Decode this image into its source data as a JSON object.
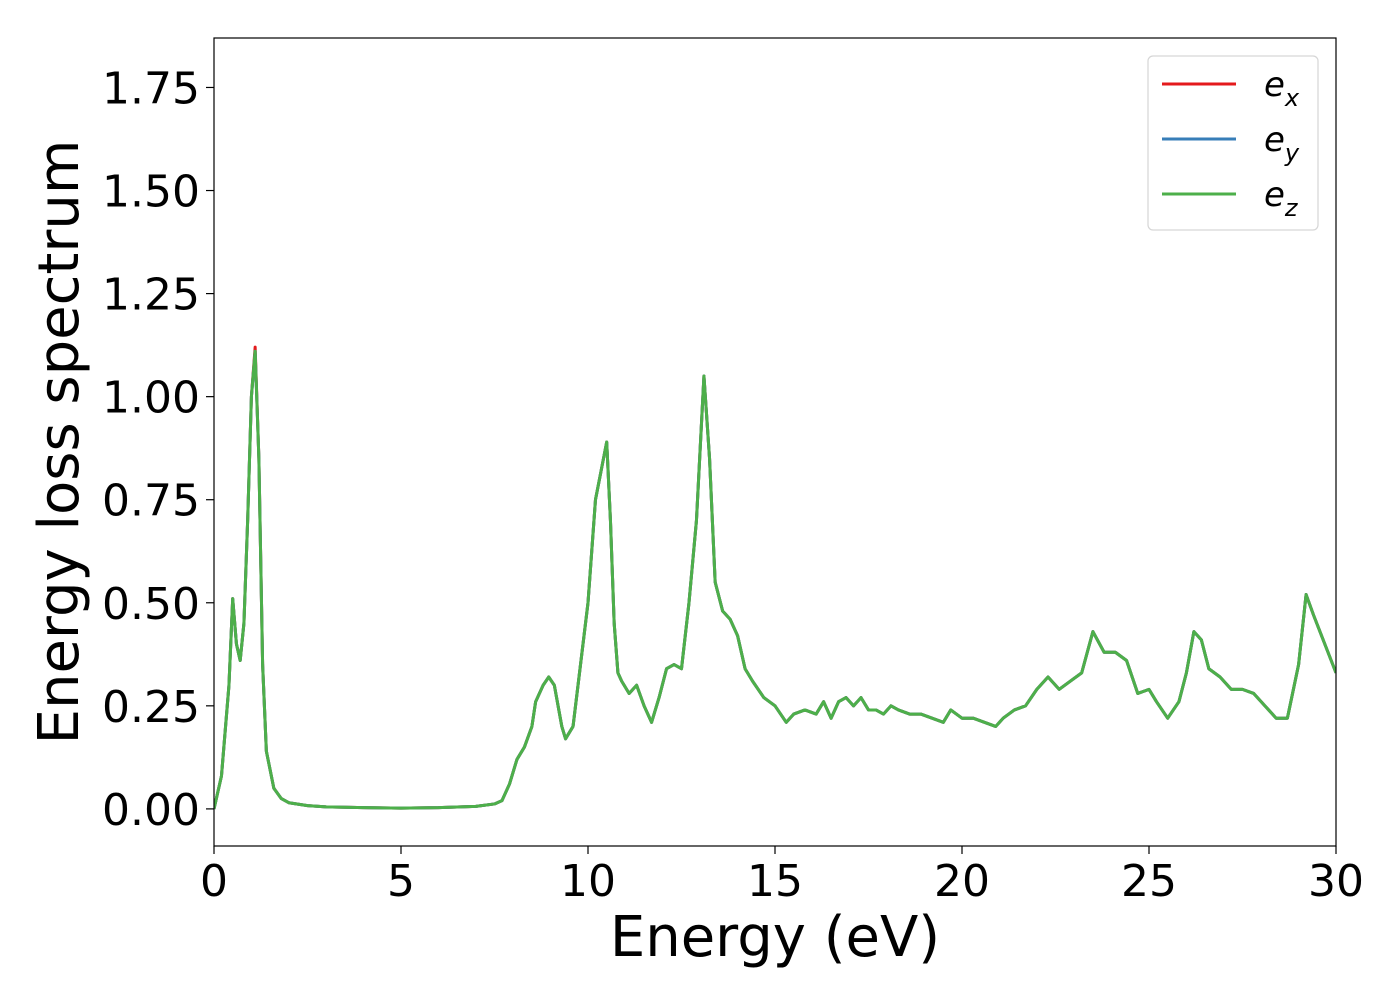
{
  "chart_data": {
    "type": "line",
    "title": "",
    "xlabel": "Energy (eV)",
    "ylabel": "Energy loss spectrum",
    "xlim": [
      0,
      30
    ],
    "ylim": [
      -0.09,
      1.87
    ],
    "xticks": [
      "0",
      "5",
      "10",
      "15",
      "20",
      "25",
      "30"
    ],
    "yticks": [
      "0.00",
      "0.25",
      "0.50",
      "0.75",
      "1.00",
      "1.25",
      "1.50",
      "1.75"
    ],
    "grid": false,
    "legend_position": "top-right",
    "x": [
      0,
      0.2,
      0.4,
      0.5,
      0.6,
      0.7,
      0.8,
      0.9,
      1.0,
      1.1,
      1.2,
      1.3,
      1.4,
      1.6,
      1.8,
      2.0,
      2.5,
      3.0,
      4.0,
      5.0,
      6.0,
      7.0,
      7.5,
      7.7,
      7.9,
      8.1,
      8.3,
      8.5,
      8.6,
      8.8,
      8.95,
      9.1,
      9.3,
      9.4,
      9.6,
      9.8,
      10.0,
      10.2,
      10.35,
      10.5,
      10.6,
      10.7,
      10.8,
      10.9,
      11.1,
      11.3,
      11.5,
      11.7,
      11.9,
      12.1,
      12.3,
      12.5,
      12.7,
      12.9,
      13.1,
      13.25,
      13.4,
      13.6,
      13.8,
      14.0,
      14.2,
      14.4,
      14.7,
      15.0,
      15.3,
      15.5,
      15.8,
      16.1,
      16.3,
      16.5,
      16.7,
      16.9,
      17.1,
      17.3,
      17.5,
      17.7,
      17.9,
      18.1,
      18.3,
      18.6,
      18.9,
      19.2,
      19.5,
      19.7,
      20.0,
      20.3,
      20.6,
      20.9,
      21.1,
      21.4,
      21.7,
      22.0,
      22.3,
      22.6,
      22.9,
      23.2,
      23.5,
      23.8,
      24.1,
      24.4,
      24.7,
      25.0,
      25.2,
      25.5,
      25.8,
      26.0,
      26.2,
      26.4,
      26.6,
      26.9,
      27.2,
      27.5,
      27.8,
      28.1,
      28.4,
      28.7,
      29.0,
      29.2,
      29.4,
      29.7,
      30.0
    ],
    "series": [
      {
        "name": "e_x",
        "color": "#e41a1c",
        "values": [
          0.0,
          0.08,
          0.3,
          0.51,
          0.4,
          0.36,
          0.45,
          0.7,
          1.0,
          1.12,
          0.85,
          0.35,
          0.14,
          0.05,
          0.025,
          0.015,
          0.008,
          0.005,
          0.003,
          0.002,
          0.003,
          0.006,
          0.012,
          0.02,
          0.06,
          0.12,
          0.15,
          0.2,
          0.26,
          0.3,
          0.32,
          0.3,
          0.2,
          0.17,
          0.2,
          0.35,
          0.5,
          0.75,
          0.82,
          0.89,
          0.7,
          0.45,
          0.33,
          0.31,
          0.28,
          0.3,
          0.25,
          0.21,
          0.27,
          0.34,
          0.35,
          0.34,
          0.5,
          0.7,
          1.05,
          0.85,
          0.55,
          0.48,
          0.46,
          0.42,
          0.34,
          0.31,
          0.27,
          0.25,
          0.21,
          0.23,
          0.24,
          0.23,
          0.26,
          0.22,
          0.26,
          0.27,
          0.25,
          0.27,
          0.24,
          0.24,
          0.23,
          0.25,
          0.24,
          0.23,
          0.23,
          0.22,
          0.21,
          0.24,
          0.22,
          0.22,
          0.21,
          0.2,
          0.22,
          0.24,
          0.25,
          0.29,
          0.32,
          0.29,
          0.31,
          0.33,
          0.43,
          0.38,
          0.38,
          0.36,
          0.28,
          0.29,
          0.26,
          0.22,
          0.26,
          0.33,
          0.43,
          0.41,
          0.34,
          0.32,
          0.29,
          0.29,
          0.28,
          0.25,
          0.22,
          0.22,
          0.35,
          0.52,
          0.47,
          0.4,
          0.33
        ]
      },
      {
        "name": "e_y",
        "color": "#377eb8",
        "values": [
          0.0,
          0.08,
          0.3,
          0.51,
          0.4,
          0.36,
          0.45,
          0.7,
          1.0,
          1.11,
          0.85,
          0.35,
          0.14,
          0.05,
          0.025,
          0.015,
          0.008,
          0.005,
          0.003,
          0.002,
          0.003,
          0.006,
          0.012,
          0.02,
          0.06,
          0.12,
          0.15,
          0.2,
          0.26,
          0.3,
          0.32,
          0.3,
          0.2,
          0.17,
          0.2,
          0.35,
          0.5,
          0.75,
          0.82,
          0.89,
          0.7,
          0.45,
          0.33,
          0.31,
          0.28,
          0.3,
          0.25,
          0.21,
          0.27,
          0.34,
          0.35,
          0.34,
          0.5,
          0.7,
          1.05,
          0.85,
          0.55,
          0.48,
          0.46,
          0.42,
          0.34,
          0.31,
          0.27,
          0.25,
          0.21,
          0.23,
          0.24,
          0.23,
          0.26,
          0.22,
          0.26,
          0.27,
          0.25,
          0.27,
          0.24,
          0.24,
          0.23,
          0.25,
          0.24,
          0.23,
          0.23,
          0.22,
          0.21,
          0.24,
          0.22,
          0.22,
          0.21,
          0.2,
          0.22,
          0.24,
          0.25,
          0.29,
          0.32,
          0.29,
          0.31,
          0.33,
          0.43,
          0.38,
          0.38,
          0.36,
          0.28,
          0.29,
          0.26,
          0.22,
          0.26,
          0.33,
          0.43,
          0.41,
          0.34,
          0.32,
          0.29,
          0.29,
          0.28,
          0.25,
          0.22,
          0.22,
          0.35,
          0.52,
          0.47,
          0.4,
          0.33
        ]
      },
      {
        "name": "e_z",
        "color": "#4daf4a",
        "values": [
          0.0,
          0.08,
          0.3,
          0.51,
          0.4,
          0.36,
          0.45,
          0.7,
          1.0,
          1.11,
          0.85,
          0.35,
          0.14,
          0.05,
          0.025,
          0.015,
          0.008,
          0.005,
          0.003,
          0.002,
          0.003,
          0.006,
          0.012,
          0.02,
          0.06,
          0.12,
          0.15,
          0.2,
          0.26,
          0.3,
          0.32,
          0.3,
          0.2,
          0.17,
          0.2,
          0.35,
          0.5,
          0.75,
          0.82,
          0.89,
          0.7,
          0.45,
          0.33,
          0.31,
          0.28,
          0.3,
          0.25,
          0.21,
          0.27,
          0.34,
          0.35,
          0.34,
          0.5,
          0.7,
          1.05,
          0.85,
          0.55,
          0.48,
          0.46,
          0.42,
          0.34,
          0.31,
          0.27,
          0.25,
          0.21,
          0.23,
          0.24,
          0.23,
          0.26,
          0.22,
          0.26,
          0.27,
          0.25,
          0.27,
          0.24,
          0.24,
          0.23,
          0.25,
          0.24,
          0.23,
          0.23,
          0.22,
          0.21,
          0.24,
          0.22,
          0.22,
          0.21,
          0.2,
          0.22,
          0.24,
          0.25,
          0.29,
          0.32,
          0.29,
          0.31,
          0.33,
          0.43,
          0.38,
          0.38,
          0.36,
          0.28,
          0.29,
          0.26,
          0.22,
          0.26,
          0.33,
          0.43,
          0.41,
          0.34,
          0.32,
          0.29,
          0.29,
          0.28,
          0.25,
          0.22,
          0.22,
          0.35,
          0.52,
          0.47,
          0.4,
          0.33
        ]
      }
    ],
    "legend": [
      {
        "base": "e",
        "sub": "x",
        "color": "#e41a1c"
      },
      {
        "base": "e",
        "sub": "y",
        "color": "#377eb8"
      },
      {
        "base": "e",
        "sub": "z",
        "color": "#4daf4a"
      }
    ]
  }
}
